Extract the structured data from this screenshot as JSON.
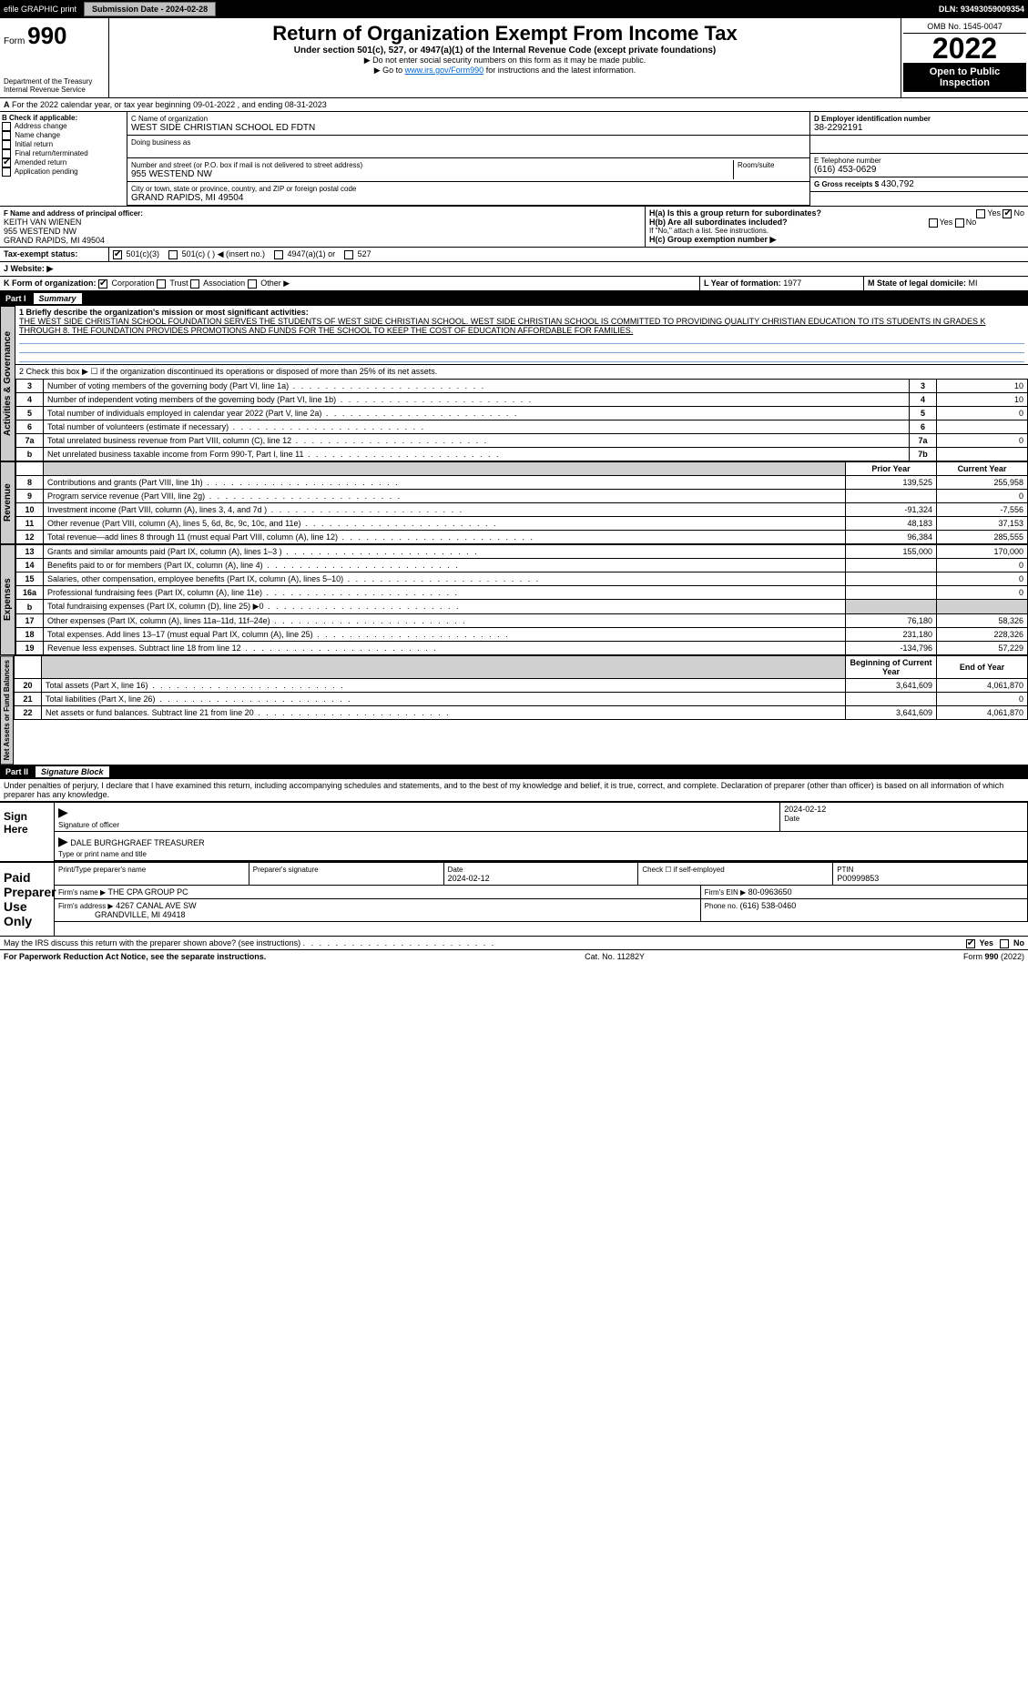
{
  "topbar": {
    "efile": "efile GRAPHIC print",
    "submission_label": "Submission Date - 2024-02-28",
    "dln": "DLN: 93493059009354"
  },
  "header": {
    "form": "Form",
    "form_no": "990",
    "dept": "Department of the Treasury",
    "irs": "Internal Revenue Service",
    "title": "Return of Organization Exempt From Income Tax",
    "sub1": "Under section 501(c), 527, or 4947(a)(1) of the Internal Revenue Code (except private foundations)",
    "sub2": "▶ Do not enter social security numbers on this form as it may be made public.",
    "sub3_pre": "▶ Go to ",
    "sub3_link": "www.irs.gov/Form990",
    "sub3_post": " for instructions and the latest information.",
    "omb": "OMB No. 1545-0047",
    "year": "2022",
    "open": "Open to Public Inspection"
  },
  "section_a": {
    "line": "For the 2022 calendar year, or tax year beginning 09-01-2022    , and ending 08-31-2023",
    "b_label": "B Check if applicable:",
    "b_opts": [
      "Address change",
      "Name change",
      "Initial return",
      "Final return/terminated",
      "Amended return",
      "Application pending"
    ],
    "b_checked": [
      false,
      false,
      false,
      false,
      true,
      false
    ],
    "c_label": "C Name of organization",
    "c_name": "WEST SIDE CHRISTIAN SCHOOL ED FDTN",
    "dba_label": "Doing business as",
    "addr_label": "Number and street (or P.O. box if mail is not delivered to street address)",
    "addr": "955 WESTEND NW",
    "room_label": "Room/suite",
    "city_label": "City or town, state or province, country, and ZIP or foreign postal code",
    "city": "GRAND RAPIDS, MI  49504",
    "d_label": "D Employer identification number",
    "d_val": "38-2292191",
    "e_label": "E Telephone number",
    "e_val": "(616) 453-0629",
    "g_label": "G Gross receipts $",
    "g_val": "430,792",
    "f_label": "F  Name and address of principal officer:",
    "f_name": "KEITH VAN WIENEN",
    "f_addr1": "955 WESTEND NW",
    "f_addr2": "GRAND RAPIDS, MI  49504",
    "ha_label": "H(a)  Is this a group return for subordinates?",
    "hb_label": "H(b)  Are all subordinates included?",
    "h_note": "If \"No,\" attach a list. See instructions.",
    "hc_label": "H(c)  Group exemption number ▶",
    "yes": "Yes",
    "no": "No",
    "i_label": "Tax-exempt status:",
    "i_501c3": "501(c)(3)",
    "i_501c": "501(c) (  ) ◀ (insert no.)",
    "i_4947": "4947(a)(1) or",
    "i_527": "527",
    "j_label": "J  Website: ▶",
    "k_label": "K Form of organization:",
    "k_corp": "Corporation",
    "k_trust": "Trust",
    "k_assoc": "Association",
    "k_other": "Other ▶",
    "l_label": "L Year of formation:",
    "l_val": "1977",
    "m_label": "M State of legal domicile:",
    "m_val": "MI"
  },
  "part1": {
    "hdr": "Part I",
    "title": "Summary",
    "tab_gov": "Activities & Governance",
    "tab_rev": "Revenue",
    "tab_exp": "Expenses",
    "tab_net": "Net Assets or Fund Balances",
    "l1": "1  Briefly describe the organization's mission or most significant activities:",
    "mission": "THE WEST SIDE CHRISTIAN SCHOOL FOUNDATION SERVES THE STUDENTS OF WEST SIDE CHRISTIAN SCHOOL. WEST SIDE CHRISTIAN SCHOOL IS COMMITTED TO PROVIDING QUALITY CHRISTIAN EDUCATION TO ITS STUDENTS IN GRADES K THROUGH 8. THE FOUNDATION PROVIDES PROMOTIONS AND FUNDS FOR THE SCHOOL TO KEEP THE COST OF EDUCATION AFFORDABLE FOR FAMILIES.",
    "l2": "2   Check this box ▶ ☐ if the organization discontinued its operations or disposed of more than 25% of its net assets.",
    "rows_gov": [
      {
        "n": "3",
        "t": "Number of voting members of the governing body (Part VI, line 1a)",
        "b": "3",
        "v": "10"
      },
      {
        "n": "4",
        "t": "Number of independent voting members of the governing body (Part VI, line 1b)",
        "b": "4",
        "v": "10"
      },
      {
        "n": "5",
        "t": "Total number of individuals employed in calendar year 2022 (Part V, line 2a)",
        "b": "5",
        "v": "0"
      },
      {
        "n": "6",
        "t": "Total number of volunteers (estimate if necessary)",
        "b": "6",
        "v": ""
      },
      {
        "n": "7a",
        "t": "Total unrelated business revenue from Part VIII, column (C), line 12",
        "b": "7a",
        "v": "0"
      },
      {
        "n": "b",
        "t": "Net unrelated business taxable income from Form 990-T, Part I, line 11",
        "b": "7b",
        "v": ""
      }
    ],
    "col_prior": "Prior Year",
    "col_curr": "Current Year",
    "rows_rev": [
      {
        "n": "8",
        "t": "Contributions and grants (Part VIII, line 1h)",
        "p": "139,525",
        "c": "255,958"
      },
      {
        "n": "9",
        "t": "Program service revenue (Part VIII, line 2g)",
        "p": "",
        "c": "0"
      },
      {
        "n": "10",
        "t": "Investment income (Part VIII, column (A), lines 3, 4, and 7d )",
        "p": "-91,324",
        "c": "-7,556"
      },
      {
        "n": "11",
        "t": "Other revenue (Part VIII, column (A), lines 5, 6d, 8c, 9c, 10c, and 11e)",
        "p": "48,183",
        "c": "37,153"
      },
      {
        "n": "12",
        "t": "Total revenue—add lines 8 through 11 (must equal Part VIII, column (A), line 12)",
        "p": "96,384",
        "c": "285,555"
      }
    ],
    "rows_exp": [
      {
        "n": "13",
        "t": "Grants and similar amounts paid (Part IX, column (A), lines 1–3 )",
        "p": "155,000",
        "c": "170,000"
      },
      {
        "n": "14",
        "t": "Benefits paid to or for members (Part IX, column (A), line 4)",
        "p": "",
        "c": "0"
      },
      {
        "n": "15",
        "t": "Salaries, other compensation, employee benefits (Part IX, column (A), lines 5–10)",
        "p": "",
        "c": "0"
      },
      {
        "n": "16a",
        "t": "Professional fundraising fees (Part IX, column (A), line 11e)",
        "p": "",
        "c": "0"
      },
      {
        "n": "b",
        "t": "Total fundraising expenses (Part IX, column (D), line 25) ▶0",
        "p": "shade",
        "c": "shade"
      },
      {
        "n": "17",
        "t": "Other expenses (Part IX, column (A), lines 11a–11d, 11f–24e)",
        "p": "76,180",
        "c": "58,326"
      },
      {
        "n": "18",
        "t": "Total expenses. Add lines 13–17 (must equal Part IX, column (A), line 25)",
        "p": "231,180",
        "c": "228,326"
      },
      {
        "n": "19",
        "t": "Revenue less expenses. Subtract line 18 from line 12",
        "p": "-134,796",
        "c": "57,229"
      }
    ],
    "col_beg": "Beginning of Current Year",
    "col_end": "End of Year",
    "rows_net": [
      {
        "n": "20",
        "t": "Total assets (Part X, line 16)",
        "p": "3,641,609",
        "c": "4,061,870"
      },
      {
        "n": "21",
        "t": "Total liabilities (Part X, line 26)",
        "p": "",
        "c": "0"
      },
      {
        "n": "22",
        "t": "Net assets or fund balances. Subtract line 21 from line 20",
        "p": "3,641,609",
        "c": "4,061,870"
      }
    ]
  },
  "part2": {
    "hdr": "Part II",
    "title": "Signature Block",
    "decl": "Under penalties of perjury, I declare that I have examined this return, including accompanying schedules and statements, and to the best of my knowledge and belief, it is true, correct, and complete. Declaration of preparer (other than officer) is based on all information of which preparer has any knowledge.",
    "sign_here": "Sign Here",
    "sig_officer": "Signature of officer",
    "sig_date": "2024-02-12",
    "date_lbl": "Date",
    "officer_name": "DALE BURGHGRAEF TREASURER",
    "type_name": "Type or print name and title",
    "paid": "Paid Preparer Use Only",
    "prep_name_lbl": "Print/Type preparer's name",
    "prep_sig_lbl": "Preparer's signature",
    "prep_date": "2024-02-12",
    "self_emp": "Check ☐ if self-employed",
    "ptin_lbl": "PTIN",
    "ptin": "P00999853",
    "firm_name_lbl": "Firm's name   ▶",
    "firm_name": "THE CPA GROUP PC",
    "firm_ein_lbl": "Firm's EIN ▶",
    "firm_ein": "80-0963650",
    "firm_addr_lbl": "Firm's address ▶",
    "firm_addr1": "4267 CANAL AVE SW",
    "firm_addr2": "GRANDVILLE, MI  49418",
    "phone_lbl": "Phone no.",
    "phone": "(616) 538-0460",
    "discuss": "May the IRS discuss this return with the preparer shown above? (see instructions)",
    "discuss_yes": true
  },
  "footer": {
    "pra": "For Paperwork Reduction Act Notice, see the separate instructions.",
    "cat": "Cat. No. 11282Y",
    "form": "Form 990 (2022)"
  },
  "colors": {
    "link": "#0066cc",
    "shade": "#d0d0d0",
    "rule": "#7aa7d4"
  }
}
